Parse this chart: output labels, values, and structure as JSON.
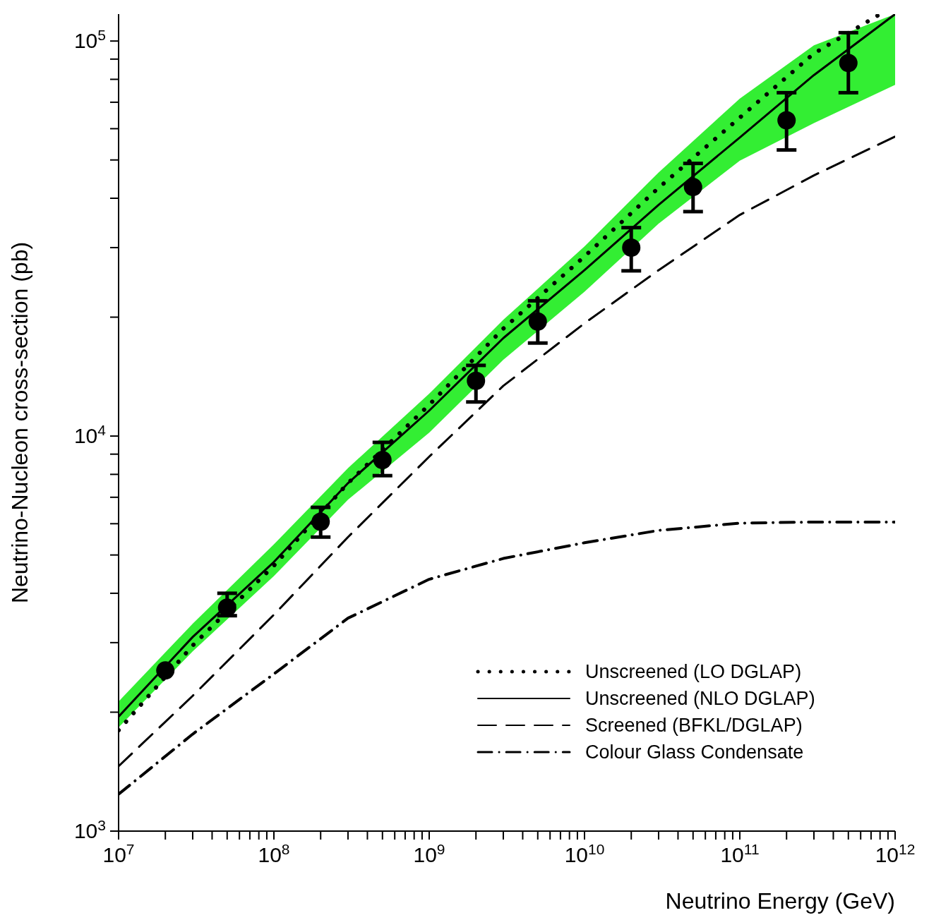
{
  "chart_data": {
    "type": "line",
    "xlabel": "Neutrino Energy (GeV)",
    "ylabel": "Neutrino-Nucleon cross-section (pb)",
    "log": "xy",
    "xlim": [
      10000000,
      1000000000000
    ],
    "ylim": [
      1000,
      117000
    ],
    "xticks": [
      {
        "value": 10000000,
        "label": "10$^{7}$"
      },
      {
        "value": 20000000,
        "label": null
      },
      {
        "value": 30000000,
        "label": null
      },
      {
        "value": 40000000,
        "label": null
      },
      {
        "value": 50000000,
        "label": null
      },
      {
        "value": 60000000,
        "label": null
      },
      {
        "value": 70000000,
        "label": null
      },
      {
        "value": 80000000,
        "label": null
      },
      {
        "value": 90000000,
        "label": null
      },
      {
        "value": 100000000,
        "label": "10$^{8}$"
      },
      {
        "value": 200000000,
        "label": null
      },
      {
        "value": 300000000,
        "label": null
      },
      {
        "value": 400000000,
        "label": null
      },
      {
        "value": 500000000,
        "label": null
      },
      {
        "value": 600000000,
        "label": null
      },
      {
        "value": 700000000,
        "label": null
      },
      {
        "value": 800000000,
        "label": null
      },
      {
        "value": 900000000,
        "label": null
      },
      {
        "value": 1000000000,
        "label": "10$^{9}$"
      },
      {
        "value": 2000000000,
        "label": null
      },
      {
        "value": 3000000000,
        "label": null
      },
      {
        "value": 4000000000,
        "label": null
      },
      {
        "value": 5000000000,
        "label": null
      },
      {
        "value": 6000000000,
        "label": null
      },
      {
        "value": 7000000000,
        "label": null
      },
      {
        "value": 8000000000,
        "label": null
      },
      {
        "value": 9000000000,
        "label": null
      },
      {
        "value": 10000000000,
        "label": "10$^{10}$"
      },
      {
        "value": 20000000000,
        "label": null
      },
      {
        "value": 30000000000,
        "label": null
      },
      {
        "value": 40000000000,
        "label": null
      },
      {
        "value": 50000000000,
        "label": null
      },
      {
        "value": 60000000000,
        "label": null
      },
      {
        "value": 70000000000,
        "label": null
      },
      {
        "value": 80000000000,
        "label": null
      },
      {
        "value": 90000000000,
        "label": null
      },
      {
        "value": 100000000000,
        "label": "10$^{11}$"
      },
      {
        "value": 200000000000,
        "label": null
      },
      {
        "value": 300000000000,
        "label": null
      },
      {
        "value": 400000000000,
        "label": null
      },
      {
        "value": 500000000000,
        "label": null
      },
      {
        "value": 600000000000,
        "label": null
      },
      {
        "value": 700000000000,
        "label": null
      },
      {
        "value": 800000000000,
        "label": null
      },
      {
        "value": 900000000000,
        "label": null
      },
      {
        "value": 1000000000000,
        "label": "10$^{12}$"
      }
    ],
    "yticks": [
      {
        "value": 1000,
        "label": "10$^{3}$"
      },
      {
        "value": 2000,
        "label": null
      },
      {
        "value": 3000,
        "label": null
      },
      {
        "value": 4000,
        "label": null
      },
      {
        "value": 5000,
        "label": null
      },
      {
        "value": 6000,
        "label": null
      },
      {
        "value": 7000,
        "label": null
      },
      {
        "value": 8000,
        "label": null
      },
      {
        "value": 9000,
        "label": null
      },
      {
        "value": 10000,
        "label": "10$^{4}$"
      },
      {
        "value": 20000,
        "label": null
      },
      {
        "value": 30000,
        "label": null
      },
      {
        "value": 40000,
        "label": null
      },
      {
        "value": 50000,
        "label": null
      },
      {
        "value": 60000,
        "label": null
      },
      {
        "value": 70000,
        "label": null
      },
      {
        "value": 80000,
        "label": null
      },
      {
        "value": 90000,
        "label": null
      },
      {
        "value": 100000,
        "label": "10$^{5}$"
      }
    ],
    "grid": false,
    "legend": "bottom right",
    "marker": "none",
    "series": [
      {
        "name": "Unscreened (LO DGLAP)",
        "color": "#000000",
        "line_style": "dotted",
        "x": [
          10000000,
          30000000,
          100000000,
          300000000,
          1000000000,
          3000000000,
          10000000000,
          30000000000,
          100000000000,
          300000000000,
          800000000000
        ],
        "values": [
          1800,
          2950,
          4700,
          7600,
          12000,
          18700,
          28500,
          42500,
          64000,
          93000,
          117000
        ]
      },
      {
        "type": "line",
        "name": "Unscreened (NLO DGLAP)",
        "color": "#000000",
        "line_style": "solid",
        "x": [
          10000000,
          30000000,
          100000000,
          300000000,
          1000000000,
          3000000000,
          10000000000,
          30000000000,
          100000000000,
          300000000000,
          1000000000000
        ],
        "values": [
          1950,
          3100,
          4800,
          7600,
          11600,
          17700,
          26300,
          38500,
          57000,
          82000,
          117000
        ],
        "colors": [
          "#33ee33",
          "#33ee33",
          "#33ee33",
          "#33ee33",
          "#33ee33",
          "#33ee33",
          "#33ee33",
          "#33ee33",
          "#33ee33",
          "#33ee33",
          "#33ee33"
        ],
        "lower": [
          1830,
          2850,
          4420,
          6900,
          10200,
          15600,
          23200,
          34500,
          49800,
          62000,
          77500
        ],
        "upper": [
          2130,
          3350,
          5320,
          8300,
          12800,
          19700,
          30200,
          46500,
          71500,
          97500,
          117000
        ]
      },
      {
        "type": "line",
        "name": "Screened (BFKL/DGLAP)",
        "color": "#000000",
        "line_style": "dashed",
        "x": [
          10000000,
          30000000,
          100000000,
          300000000,
          1000000000,
          3000000000,
          10000000000,
          30000000000,
          100000000000,
          300000000000,
          1000000000000
        ],
        "values": [
          1460,
          2200,
          3530,
          5550,
          8870,
          13400,
          19300,
          26300,
          36300,
          45700,
          57300
        ]
      },
      {
        "type": "line",
        "name": "Colour Glass Condensate",
        "color": "#000000",
        "line_style": "dashdot",
        "x": [
          10000000,
          30000000,
          100000000,
          300000000,
          1000000000,
          3000000000,
          10000000000,
          30000000000,
          100000000000,
          300000000000,
          1000000000000
        ],
        "values": [
          1240,
          1760,
          2500,
          3460,
          4340,
          4900,
          5370,
          5770,
          6020,
          6060,
          6060
        ]
      },
      {
        "type": "scatter",
        "color": "#000000",
        "marker": "circle",
        "x": [
          20000000,
          50000000,
          200000000,
          500000000,
          2000000000,
          5000000000,
          20000000000,
          50000000000,
          200000000000,
          500000000000
        ],
        "values": [
          2550,
          3680,
          6070,
          8700,
          13800,
          19500,
          30000,
          42700,
          63000,
          88000
        ],
        "errors": [
          null,
          [
            3510,
            4000
          ],
          [
            5550,
            6600
          ],
          [
            7940,
            9640
          ],
          [
            12200,
            15100
          ],
          [
            17200,
            22000
          ],
          [
            26200,
            33700
          ],
          [
            37000,
            49000
          ],
          [
            53000,
            74000
          ],
          [
            74000,
            105000
          ]
        ]
      }
    ]
  }
}
